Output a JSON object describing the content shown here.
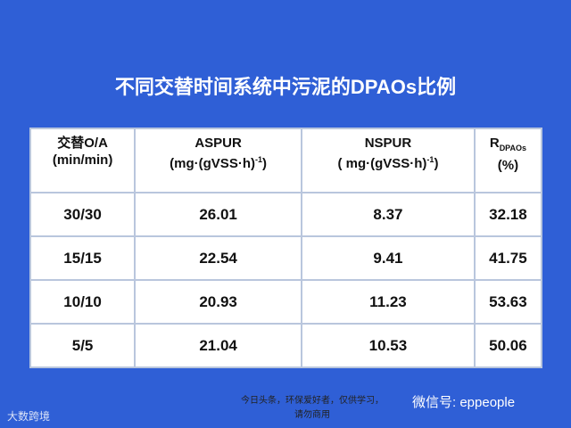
{
  "title": "不同交替时间系统中污泥的DPAOs比例",
  "table": {
    "headers": [
      {
        "line1": "交替O/A",
        "line2": "(min/min)"
      },
      {
        "line1": "ASPUR",
        "unit": "(mg·(gVSS·h)",
        "sup": "-1",
        "close": ")"
      },
      {
        "line1": "NSPUR",
        "unit": "( mg·(gVSS·h)",
        "sup": "-1",
        "close": ")"
      },
      {
        "line1": "R",
        "sub": "DPAOs",
        "line2": "(%)"
      }
    ],
    "rows": [
      [
        "30/30",
        26.01,
        8.37,
        32.18
      ],
      [
        "15/15",
        22.54,
        9.41,
        41.75
      ],
      [
        "10/10",
        20.93,
        11.23,
        53.63
      ],
      [
        "5/5",
        21.04,
        10.53,
        50.06
      ]
    ]
  },
  "footer": {
    "note_line1": "今日头条，环保爱好者，仅供学习，",
    "note_line2": "请勿商用",
    "wechat": "微信号: eppeople",
    "logo": "大数跨境"
  }
}
